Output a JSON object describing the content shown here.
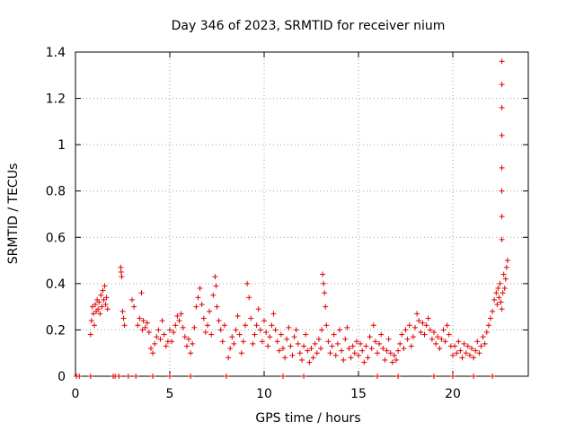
{
  "chart_data": {
    "type": "scatter",
    "title": "Day 346 of 2023, SRMTID for receiver nium",
    "xlabel": "GPS time / hours",
    "ylabel": "SRMTID / TECUs",
    "xlim": [
      0,
      24
    ],
    "ylim": [
      0,
      1.4
    ],
    "xticks": [
      0,
      5,
      10,
      15,
      20
    ],
    "xtick_labels": [
      "0",
      "5",
      "10",
      "15",
      "20"
    ],
    "yticks": [
      0,
      0.2,
      0.4,
      0.6,
      0.8,
      1.0,
      1.2,
      1.4
    ],
    "ytick_labels": [
      "0",
      "0.2",
      "0.4",
      "0.6",
      "0.8",
      "1",
      "1.2",
      "1.4"
    ],
    "grid": true,
    "marker": "+",
    "marker_color": "#e00000",
    "series": [
      {
        "name": "SRMTID",
        "points": [
          [
            0.05,
            0.0
          ],
          [
            0.2,
            0.0
          ],
          [
            0.8,
            0.0
          ],
          [
            2.0,
            0.0
          ],
          [
            2.1,
            0.0
          ],
          [
            2.3,
            0.0
          ],
          [
            2.8,
            0.0
          ],
          [
            3.2,
            0.0
          ],
          [
            4.1,
            0.0
          ],
          [
            5.0,
            0.0
          ],
          [
            6.1,
            0.0
          ],
          [
            8.0,
            0.0
          ],
          [
            11.0,
            0.0
          ],
          [
            12.1,
            0.0
          ],
          [
            16.0,
            0.0
          ],
          [
            17.1,
            0.0
          ],
          [
            19.0,
            0.0
          ],
          [
            20.0,
            0.0
          ],
          [
            21.1,
            0.0
          ],
          [
            22.1,
            0.0
          ],
          [
            0.8,
            0.18
          ],
          [
            0.85,
            0.24
          ],
          [
            0.9,
            0.3
          ],
          [
            0.95,
            0.27
          ],
          [
            1.0,
            0.22
          ],
          [
            1.05,
            0.31
          ],
          [
            1.1,
            0.28
          ],
          [
            1.15,
            0.33
          ],
          [
            1.2,
            0.29
          ],
          [
            1.25,
            0.32
          ],
          [
            1.3,
            0.27
          ],
          [
            1.35,
            0.35
          ],
          [
            1.4,
            0.3
          ],
          [
            1.45,
            0.37
          ],
          [
            1.5,
            0.33
          ],
          [
            1.55,
            0.39
          ],
          [
            1.6,
            0.31
          ],
          [
            1.65,
            0.34
          ],
          [
            1.7,
            0.29
          ],
          [
            2.4,
            0.47
          ],
          [
            2.42,
            0.45
          ],
          [
            2.45,
            0.43
          ],
          [
            2.5,
            0.28
          ],
          [
            2.55,
            0.25
          ],
          [
            2.6,
            0.22
          ],
          [
            3.0,
            0.33
          ],
          [
            3.1,
            0.3
          ],
          [
            3.3,
            0.22
          ],
          [
            3.4,
            0.25
          ],
          [
            3.5,
            0.36
          ],
          [
            3.55,
            0.2
          ],
          [
            3.6,
            0.24
          ],
          [
            3.7,
            0.21
          ],
          [
            3.8,
            0.23
          ],
          [
            3.9,
            0.19
          ],
          [
            4.0,
            0.12
          ],
          [
            4.1,
            0.1
          ],
          [
            4.2,
            0.14
          ],
          [
            4.3,
            0.17
          ],
          [
            4.4,
            0.2
          ],
          [
            4.5,
            0.16
          ],
          [
            4.6,
            0.24
          ],
          [
            4.7,
            0.18
          ],
          [
            4.8,
            0.13
          ],
          [
            4.9,
            0.15
          ],
          [
            5.0,
            0.2
          ],
          [
            5.1,
            0.15
          ],
          [
            5.2,
            0.19
          ],
          [
            5.3,
            0.22
          ],
          [
            5.4,
            0.26
          ],
          [
            5.5,
            0.24
          ],
          [
            5.6,
            0.27
          ],
          [
            5.7,
            0.21
          ],
          [
            5.8,
            0.17
          ],
          [
            5.9,
            0.13
          ],
          [
            6.0,
            0.16
          ],
          [
            6.1,
            0.1
          ],
          [
            6.2,
            0.14
          ],
          [
            6.3,
            0.21
          ],
          [
            6.4,
            0.3
          ],
          [
            6.5,
            0.34
          ],
          [
            6.6,
            0.38
          ],
          [
            6.7,
            0.31
          ],
          [
            6.8,
            0.25
          ],
          [
            6.9,
            0.19
          ],
          [
            7.0,
            0.22
          ],
          [
            7.1,
            0.28
          ],
          [
            7.2,
            0.18
          ],
          [
            7.3,
            0.35
          ],
          [
            7.4,
            0.43
          ],
          [
            7.45,
            0.39
          ],
          [
            7.5,
            0.3
          ],
          [
            7.6,
            0.24
          ],
          [
            7.7,
            0.2
          ],
          [
            7.8,
            0.15
          ],
          [
            7.9,
            0.22
          ],
          [
            8.1,
            0.08
          ],
          [
            8.2,
            0.12
          ],
          [
            8.3,
            0.17
          ],
          [
            8.4,
            0.14
          ],
          [
            8.5,
            0.2
          ],
          [
            8.6,
            0.26
          ],
          [
            8.7,
            0.18
          ],
          [
            8.8,
            0.1
          ],
          [
            8.9,
            0.15
          ],
          [
            9.0,
            0.22
          ],
          [
            9.1,
            0.4
          ],
          [
            9.2,
            0.34
          ],
          [
            9.3,
            0.25
          ],
          [
            9.4,
            0.14
          ],
          [
            9.5,
            0.18
          ],
          [
            9.6,
            0.22
          ],
          [
            9.7,
            0.29
          ],
          [
            9.8,
            0.2
          ],
          [
            9.9,
            0.15
          ],
          [
            10.0,
            0.24
          ],
          [
            10.1,
            0.19
          ],
          [
            10.2,
            0.13
          ],
          [
            10.3,
            0.17
          ],
          [
            10.4,
            0.22
          ],
          [
            10.5,
            0.27
          ],
          [
            10.6,
            0.2
          ],
          [
            10.7,
            0.15
          ],
          [
            10.8,
            0.11
          ],
          [
            10.9,
            0.18
          ],
          [
            11.0,
            0.12
          ],
          [
            11.1,
            0.08
          ],
          [
            11.2,
            0.16
          ],
          [
            11.3,
            0.21
          ],
          [
            11.4,
            0.13
          ],
          [
            11.5,
            0.09
          ],
          [
            11.6,
            0.17
          ],
          [
            11.7,
            0.2
          ],
          [
            11.8,
            0.14
          ],
          [
            11.9,
            0.1
          ],
          [
            12.0,
            0.07
          ],
          [
            12.1,
            0.13
          ],
          [
            12.2,
            0.18
          ],
          [
            12.3,
            0.11
          ],
          [
            12.4,
            0.06
          ],
          [
            12.5,
            0.12
          ],
          [
            12.6,
            0.08
          ],
          [
            12.7,
            0.14
          ],
          [
            12.8,
            0.1
          ],
          [
            12.9,
            0.16
          ],
          [
            13.0,
            0.12
          ],
          [
            13.05,
            0.2
          ],
          [
            13.1,
            0.44
          ],
          [
            13.15,
            0.4
          ],
          [
            13.2,
            0.36
          ],
          [
            13.25,
            0.3
          ],
          [
            13.3,
            0.22
          ],
          [
            13.4,
            0.15
          ],
          [
            13.5,
            0.1
          ],
          [
            13.6,
            0.13
          ],
          [
            13.7,
            0.18
          ],
          [
            13.8,
            0.09
          ],
          [
            13.9,
            0.14
          ],
          [
            14.0,
            0.2
          ],
          [
            14.1,
            0.11
          ],
          [
            14.2,
            0.07
          ],
          [
            14.3,
            0.16
          ],
          [
            14.4,
            0.21
          ],
          [
            14.5,
            0.12
          ],
          [
            14.6,
            0.08
          ],
          [
            14.7,
            0.13
          ],
          [
            14.8,
            0.1
          ],
          [
            14.9,
            0.15
          ],
          [
            15.0,
            0.09
          ],
          [
            15.1,
            0.14
          ],
          [
            15.2,
            0.11
          ],
          [
            15.3,
            0.06
          ],
          [
            15.4,
            0.13
          ],
          [
            15.5,
            0.08
          ],
          [
            15.6,
            0.17
          ],
          [
            15.7,
            0.12
          ],
          [
            15.8,
            0.22
          ],
          [
            15.9,
            0.15
          ],
          [
            16.0,
            0.1
          ],
          [
            16.1,
            0.14
          ],
          [
            16.2,
            0.18
          ],
          [
            16.3,
            0.12
          ],
          [
            16.4,
            0.07
          ],
          [
            16.5,
            0.11
          ],
          [
            16.6,
            0.16
          ],
          [
            16.7,
            0.1
          ],
          [
            16.8,
            0.06
          ],
          [
            16.9,
            0.09
          ],
          [
            17.0,
            0.07
          ],
          [
            17.1,
            0.11
          ],
          [
            17.2,
            0.14
          ],
          [
            17.3,
            0.18
          ],
          [
            17.4,
            0.12
          ],
          [
            17.5,
            0.2
          ],
          [
            17.6,
            0.16
          ],
          [
            17.7,
            0.22
          ],
          [
            17.8,
            0.13
          ],
          [
            17.9,
            0.17
          ],
          [
            18.0,
            0.21
          ],
          [
            18.1,
            0.27
          ],
          [
            18.2,
            0.24
          ],
          [
            18.3,
            0.19
          ],
          [
            18.4,
            0.23
          ],
          [
            18.5,
            0.18
          ],
          [
            18.6,
            0.22
          ],
          [
            18.7,
            0.25
          ],
          [
            18.8,
            0.2
          ],
          [
            18.9,
            0.16
          ],
          [
            19.0,
            0.19
          ],
          [
            19.1,
            0.14
          ],
          [
            19.2,
            0.17
          ],
          [
            19.3,
            0.12
          ],
          [
            19.4,
            0.16
          ],
          [
            19.5,
            0.2
          ],
          [
            19.6,
            0.15
          ],
          [
            19.7,
            0.22
          ],
          [
            19.8,
            0.18
          ],
          [
            19.9,
            0.13
          ],
          [
            20.0,
            0.09
          ],
          [
            20.1,
            0.13
          ],
          [
            20.2,
            0.1
          ],
          [
            20.3,
            0.15
          ],
          [
            20.4,
            0.11
          ],
          [
            20.5,
            0.08
          ],
          [
            20.6,
            0.14
          ],
          [
            20.7,
            0.1
          ],
          [
            20.8,
            0.13
          ],
          [
            20.9,
            0.09
          ],
          [
            21.0,
            0.12
          ],
          [
            21.1,
            0.08
          ],
          [
            21.2,
            0.11
          ],
          [
            21.3,
            0.15
          ],
          [
            21.4,
            0.1
          ],
          [
            21.5,
            0.13
          ],
          [
            21.6,
            0.17
          ],
          [
            21.7,
            0.14
          ],
          [
            21.8,
            0.19
          ],
          [
            21.9,
            0.22
          ],
          [
            22.0,
            0.25
          ],
          [
            22.1,
            0.28
          ],
          [
            22.2,
            0.33
          ],
          [
            22.3,
            0.36
          ],
          [
            22.35,
            0.31
          ],
          [
            22.4,
            0.38
          ],
          [
            22.45,
            0.34
          ],
          [
            22.5,
            0.4
          ],
          [
            22.55,
            0.32
          ],
          [
            22.6,
            0.29
          ],
          [
            22.65,
            0.36
          ],
          [
            22.7,
            0.44
          ],
          [
            22.75,
            0.38
          ],
          [
            22.8,
            0.42
          ],
          [
            22.85,
            0.47
          ],
          [
            22.9,
            0.5
          ],
          [
            22.6,
            0.59
          ],
          [
            22.6,
            0.69
          ],
          [
            22.6,
            0.8
          ],
          [
            22.6,
            0.9
          ],
          [
            22.6,
            1.04
          ],
          [
            22.6,
            1.16
          ],
          [
            22.6,
            1.26
          ],
          [
            22.6,
            1.36
          ]
        ]
      }
    ]
  }
}
